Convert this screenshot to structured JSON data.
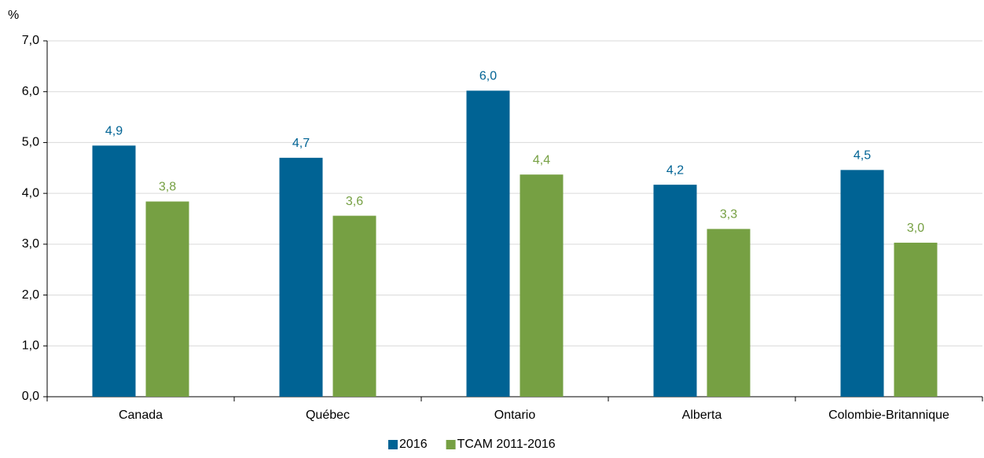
{
  "chart_data": {
    "type": "bar",
    "y_axis_label": "%",
    "categories": [
      "Canada",
      "Québec",
      "Ontario",
      "Alberta",
      "Colombie-Britannique"
    ],
    "series": [
      {
        "name": "2016",
        "color": "#006394",
        "values": [
          4.94,
          4.7,
          6.02,
          4.17,
          4.46
        ],
        "value_labels": [
          "4,9",
          "4,7",
          "6,0",
          "4,2",
          "4,5"
        ]
      },
      {
        "name": "TCAM 2011-2016",
        "color": "#76a043",
        "values": [
          3.84,
          3.56,
          4.37,
          3.3,
          3.03
        ],
        "value_labels": [
          "3,8",
          "3,6",
          "4,4",
          "3,3",
          "3,0"
        ]
      }
    ],
    "ylim": [
      0,
      7
    ],
    "yticks": [
      {
        "value": 0,
        "label": "0,0"
      },
      {
        "value": 1,
        "label": "1,0"
      },
      {
        "value": 2,
        "label": "2,0"
      },
      {
        "value": 3,
        "label": "3,0"
      },
      {
        "value": 4,
        "label": "4,0"
      },
      {
        "value": 5,
        "label": "5,0"
      },
      {
        "value": 6,
        "label": "6,0"
      },
      {
        "value": 7,
        "label": "7,0"
      }
    ],
    "grid": true,
    "legend": "bottom"
  }
}
